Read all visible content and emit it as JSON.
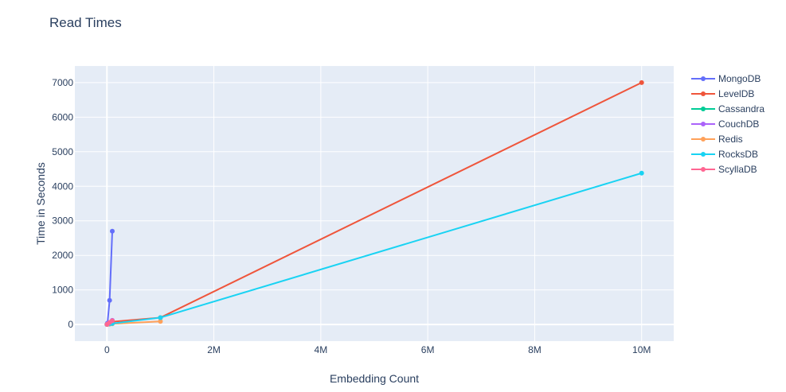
{
  "chart_data": {
    "type": "line",
    "title": "Read Times",
    "xlabel": "Embedding Count",
    "ylabel": "Time in Seconds",
    "xlim": [
      -600000,
      10600000
    ],
    "ylim": [
      -480,
      7480
    ],
    "x_ticks": [
      {
        "value": 0,
        "label": "0"
      },
      {
        "value": 2000000,
        "label": "2M"
      },
      {
        "value": 4000000,
        "label": "4M"
      },
      {
        "value": 6000000,
        "label": "6M"
      },
      {
        "value": 8000000,
        "label": "8M"
      },
      {
        "value": 10000000,
        "label": "10M"
      }
    ],
    "y_ticks": [
      {
        "value": 0,
        "label": "0"
      },
      {
        "value": 1000,
        "label": "1000"
      },
      {
        "value": 2000,
        "label": "2000"
      },
      {
        "value": 3000,
        "label": "3000"
      },
      {
        "value": 4000,
        "label": "4000"
      },
      {
        "value": 5000,
        "label": "5000"
      },
      {
        "value": 6000,
        "label": "6000"
      },
      {
        "value": 7000,
        "label": "7000"
      }
    ],
    "grid": true,
    "legend_position": "right",
    "colors": {
      "plot_background": "#e5ecf6",
      "grid": "#ffffff",
      "text": "#2a3f5f"
    },
    "series": [
      {
        "name": "MongoDB",
        "color": "#636efa",
        "points": [
          [
            1000,
            5
          ],
          [
            10000,
            40
          ],
          [
            50000,
            700
          ],
          [
            100000,
            2700
          ]
        ]
      },
      {
        "name": "LevelDB",
        "color": "#ef553b",
        "points": [
          [
            1000,
            2
          ],
          [
            10000,
            10
          ],
          [
            50000,
            40
          ],
          [
            100000,
            80
          ],
          [
            1000000,
            200
          ],
          [
            10000000,
            7000
          ]
        ]
      },
      {
        "name": "Cassandra",
        "color": "#00cc96",
        "points": [
          [
            1000,
            3
          ],
          [
            10000,
            12
          ],
          [
            50000,
            50
          ],
          [
            100000,
            100
          ]
        ]
      },
      {
        "name": "CouchDB",
        "color": "#ab63fa",
        "points": [
          [
            1000,
            4
          ],
          [
            10000,
            20
          ],
          [
            50000,
            60
          ],
          [
            100000,
            120
          ]
        ]
      },
      {
        "name": "Redis",
        "color": "#ffa15a",
        "points": [
          [
            1000,
            1
          ],
          [
            10000,
            5
          ],
          [
            50000,
            10
          ],
          [
            100000,
            20
          ],
          [
            1000000,
            90
          ]
        ]
      },
      {
        "name": "RocksDB",
        "color": "#19d3f3",
        "points": [
          [
            1000,
            2
          ],
          [
            10000,
            8
          ],
          [
            50000,
            20
          ],
          [
            100000,
            30
          ],
          [
            1000000,
            200
          ],
          [
            10000000,
            4380
          ]
        ]
      },
      {
        "name": "ScyllaDB",
        "color": "#ff6692",
        "points": [
          [
            1000,
            3
          ],
          [
            10000,
            15
          ],
          [
            50000,
            60
          ],
          [
            100000,
            110
          ]
        ]
      }
    ]
  }
}
